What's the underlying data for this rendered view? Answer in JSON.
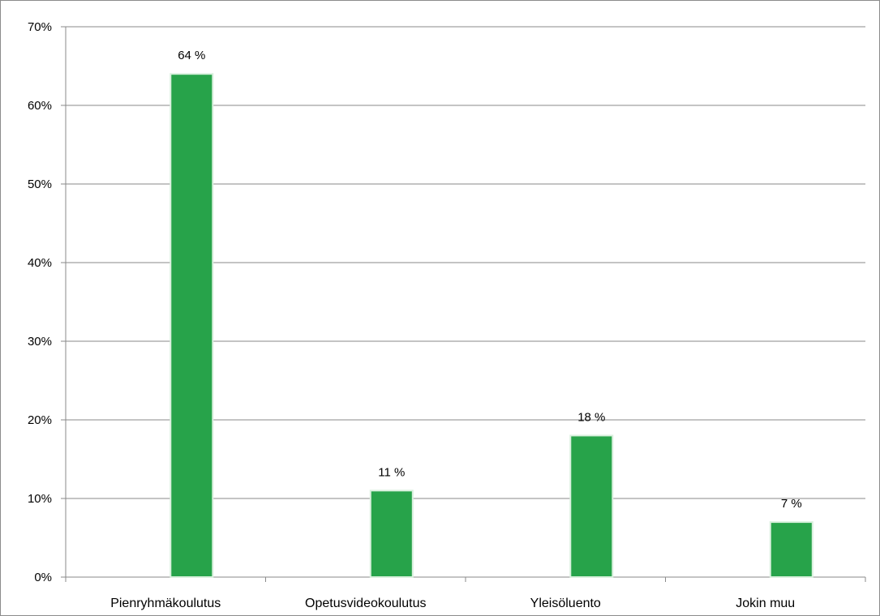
{
  "chart_data": {
    "type": "bar",
    "categories": [
      "Pienryhmäkoulutus",
      "Opetusvideokoulutus",
      "Yleisöluento",
      "Jokin muu"
    ],
    "values": [
      64,
      11,
      18,
      7
    ],
    "data_labels": [
      "64 %",
      "11 %",
      "18 %",
      "7 %"
    ],
    "y_ticks": [
      "0%",
      "10%",
      "20%",
      "30%",
      "40%",
      "50%",
      "60%",
      "70%"
    ],
    "ylim": [
      0,
      70
    ],
    "grid": true,
    "legend": "none",
    "colors": {
      "bar": "#27a34a",
      "bar_edge": "#d9f0dd",
      "grid": "#8a8a8a",
      "axis": "#8a8a8a"
    }
  }
}
